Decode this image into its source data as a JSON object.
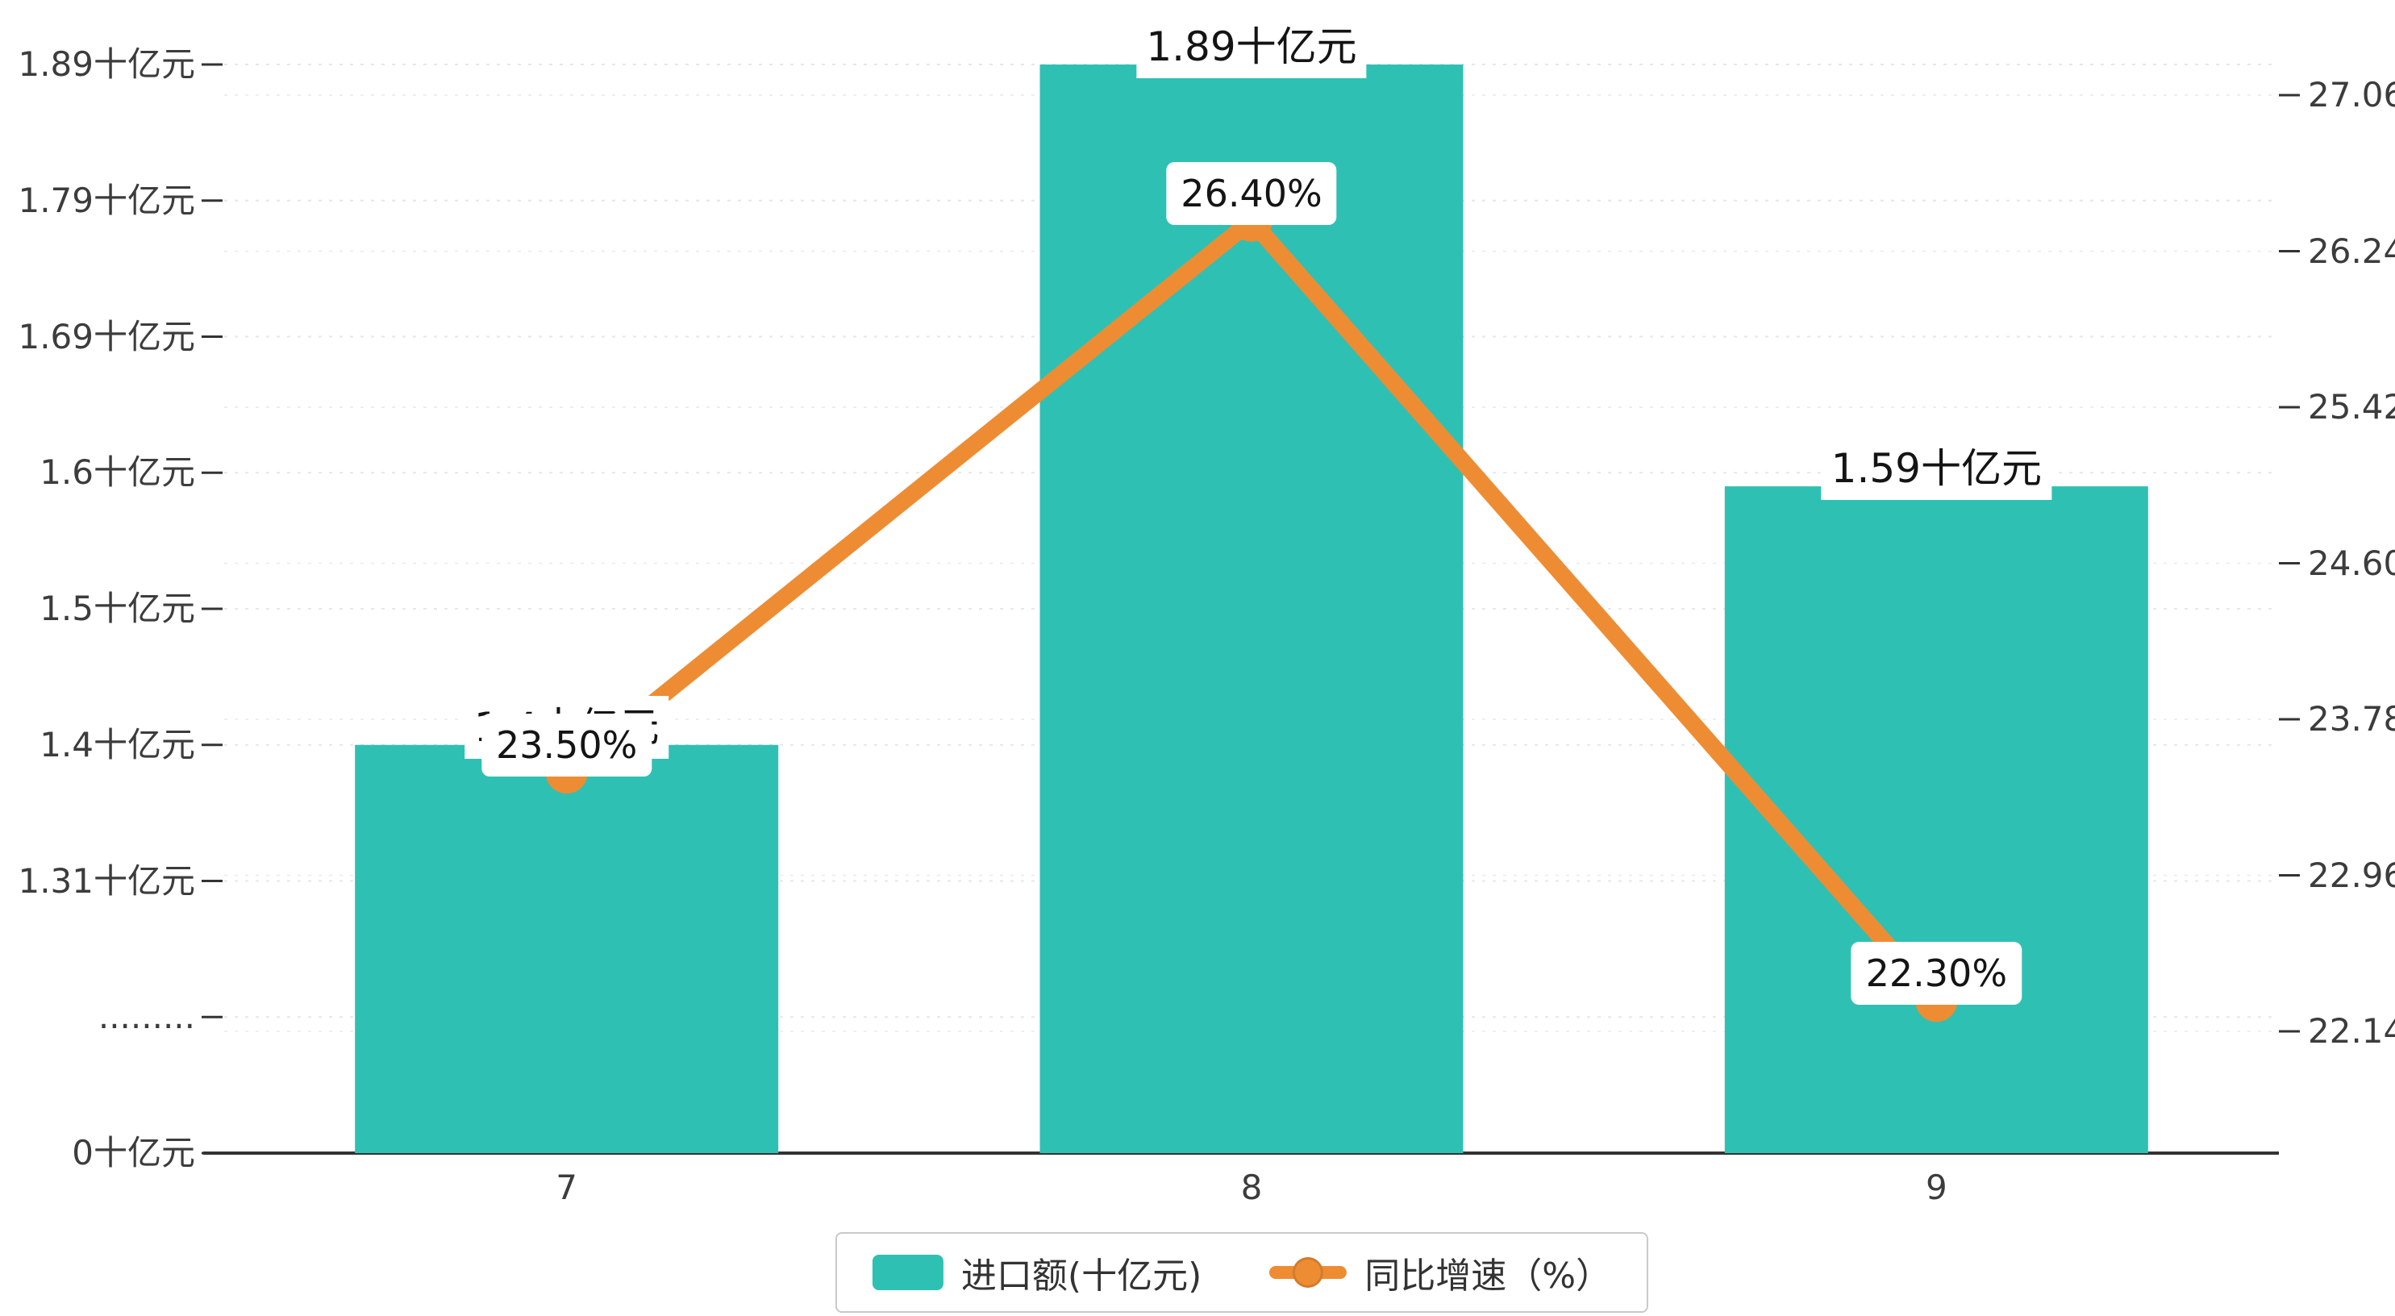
{
  "chart_data": {
    "type": "bar",
    "combo": "bar+line dual-axis",
    "categories": [
      "7",
      "8",
      "9"
    ],
    "series": [
      {
        "name": "进口额(十亿元)",
        "type": "bar",
        "axis": "left",
        "values": [
          1.4,
          1.89,
          1.59
        ],
        "labels": [
          "1.4十亿元",
          "1.89十亿元",
          "1.59十亿元"
        ],
        "color": "#2fc0b4"
      },
      {
        "name": "同比增速（%）",
        "type": "line",
        "axis": "right",
        "values": [
          23.5,
          26.4,
          22.3
        ],
        "labels": [
          "23.50%",
          "26.40%",
          "22.30%"
        ],
        "color": "#ee8c33"
      }
    ],
    "left_axis": {
      "tick_labels": [
        "1.89十亿元",
        "1.79十亿元",
        "1.69十亿元",
        "1.6十亿元",
        "1.5十亿元",
        "1.4十亿元",
        "1.31十亿元",
        ".........",
        "0十亿元"
      ],
      "tick_values": [
        1.89,
        1.79,
        1.69,
        1.6,
        1.5,
        1.4,
        1.31,
        null,
        0
      ],
      "has_break": true
    },
    "right_axis": {
      "tick_labels": [
        "27.06",
        "26.24",
        "25.42",
        "24.60",
        "23.78",
        "22.96",
        "22.14"
      ],
      "tick_values": [
        27.06,
        26.24,
        25.42,
        24.6,
        23.78,
        22.96,
        22.14
      ]
    },
    "legend": [
      {
        "label": "进口额(十亿元)",
        "marker": "bar-swatch",
        "color": "#2fc0b4"
      },
      {
        "label": "同比增速（%）",
        "marker": "line-dot",
        "color": "#ee8c33"
      }
    ],
    "grid": true,
    "legend_position": "bottom-center",
    "colors": {
      "bar": "#2fc0b4",
      "line": "#ee8c33",
      "axis": "#333333",
      "grid": "#e7e7e7",
      "label_text": "#141414",
      "tick_text": "#3c3c3c"
    }
  }
}
